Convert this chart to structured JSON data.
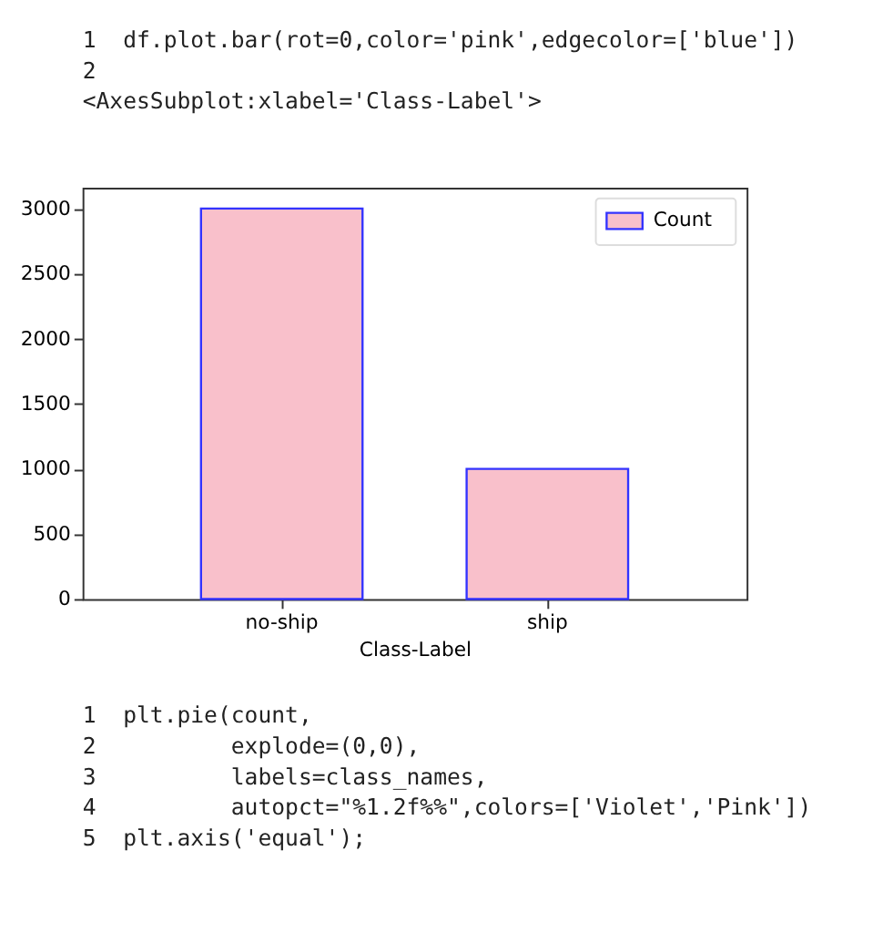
{
  "chart_data": {
    "type": "bar",
    "xlabel": "Class-Label",
    "categories": [
      "no-ship",
      "ship"
    ],
    "series": [
      {
        "name": "Count",
        "color": "#f9c0cb",
        "values": [
          3000,
          1000
        ]
      }
    ],
    "ylim": [
      0,
      3160
    ],
    "yticks": [
      0,
      500,
      1000,
      1500,
      2000,
      2500,
      3000
    ],
    "grid": false,
    "legend": "top right",
    "annotations": [
      "1  df.plot.bar(rot=0,color='pink',edgecolor=['blue'])",
      "2",
      "<AxesSubplot:xlabel='Class-Label'>",
      "1  plt.pie(count,",
      "2          explode=(0,0),",
      "3          labels=class_names,",
      "4          autopct=\"%1.2f%%\",colors=['Violet','Pink'])",
      "5  plt.axis('equal');"
    ]
  }
}
